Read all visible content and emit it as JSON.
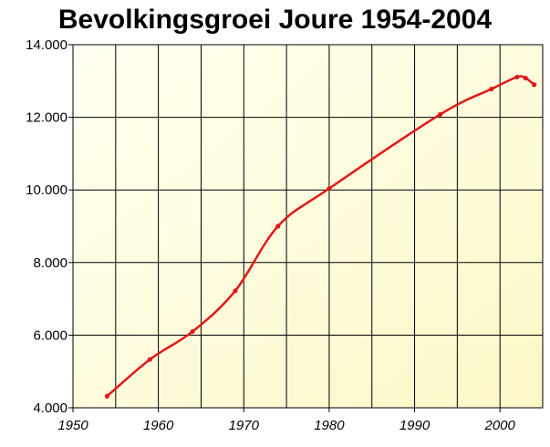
{
  "chart_data": {
    "type": "line",
    "title": "Bevolkingsgroei Joure 1954-2004",
    "xlabel": "",
    "ylabel": "",
    "xlim": [
      1950,
      2005
    ],
    "ylim": [
      4000,
      14000
    ],
    "x_ticks": [
      1950,
      1960,
      1970,
      1980,
      1990,
      2000
    ],
    "x_tick_labels": [
      "1950",
      "1960",
      "1970",
      "1980",
      "1990",
      "2000"
    ],
    "y_ticks": [
      4000,
      6000,
      8000,
      10000,
      12000,
      14000
    ],
    "y_tick_labels": [
      "4.000",
      "6.000",
      "8.000",
      "10.000",
      "12.000",
      "14.000"
    ],
    "x_gridlines": [
      1955,
      1960,
      1965,
      1970,
      1975,
      1980,
      1985,
      1990,
      1995,
      2000
    ],
    "grid": true,
    "legend": "none",
    "series": [
      {
        "color": "#e01818",
        "points": [
          {
            "x": 1954,
            "y": 4320
          },
          {
            "x": 1959,
            "y": 5330
          },
          {
            "x": 1964,
            "y": 6100
          },
          {
            "x": 1969,
            "y": 7220
          },
          {
            "x": 1974,
            "y": 9000
          },
          {
            "x": 1980,
            "y": 10040
          },
          {
            "x": 1993,
            "y": 12080
          },
          {
            "x": 1999,
            "y": 12780
          },
          {
            "x": 2002,
            "y": 13110
          },
          {
            "x": 2003,
            "y": 13080
          },
          {
            "x": 2004,
            "y": 12900
          }
        ]
      }
    ],
    "plot_background": [
      "#fffff0",
      "#fcf8c8"
    ],
    "grid_color": "#000000"
  }
}
